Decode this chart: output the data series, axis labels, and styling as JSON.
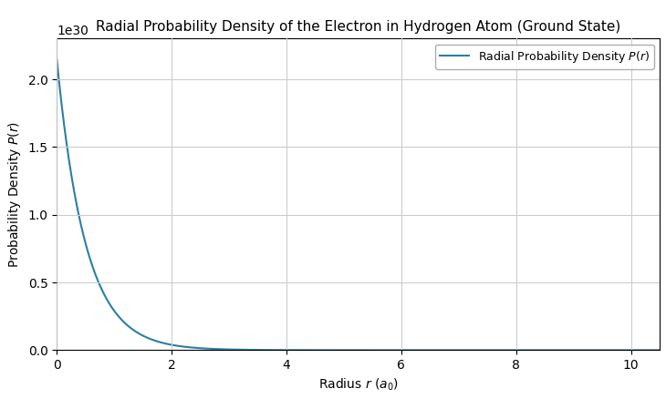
{
  "title": "Radial Probability Density of the Electron in Hydrogen Atom (Ground State)",
  "legend_label": "Radial Probability Density P(r)",
  "line_color": "#2a7fa5",
  "xlim": [
    0,
    10.5
  ],
  "ylim": [
    0.0,
    2.3e+30
  ],
  "x_start": 0.001,
  "x_end": 10.5,
  "n_points": 1000,
  "a0_m": 5.29177e-11,
  "grid_color": "#cccccc",
  "background_color": "#ffffff",
  "title_fontsize": 11,
  "label_fontsize": 10,
  "legend_fontsize": 9
}
